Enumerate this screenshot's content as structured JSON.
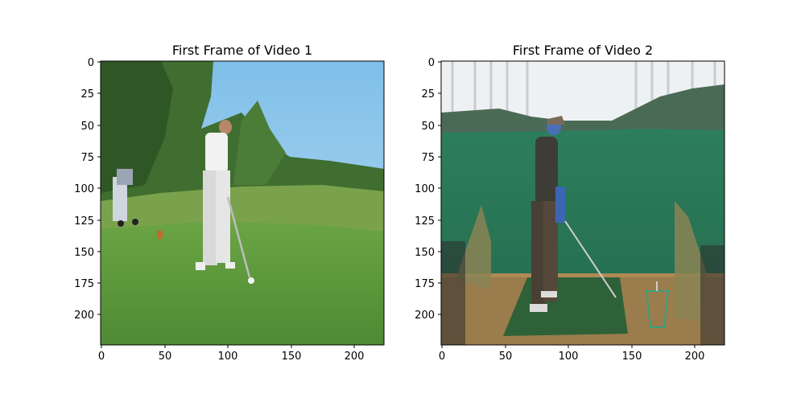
{
  "panels": [
    {
      "title": "First Frame of Video 1",
      "xticks": [
        "0",
        "50",
        "100",
        "150",
        "200"
      ],
      "yticks": [
        "0",
        "25",
        "50",
        "75",
        "100",
        "125",
        "150",
        "175",
        "200"
      ]
    },
    {
      "title": "First Frame of Video 2",
      "xticks": [
        "0",
        "50",
        "100",
        "150",
        "200"
      ],
      "yticks": [
        "0",
        "25",
        "50",
        "75",
        "100",
        "125",
        "150",
        "175",
        "200"
      ]
    }
  ],
  "colors": {
    "sky1": "#8fc6ea",
    "grass1": "#5d9a3e",
    "trees1": "#3e6b32",
    "sky2": "#eef2f3",
    "turf2": "#2f7a60",
    "mat2": "#2f5f35"
  }
}
